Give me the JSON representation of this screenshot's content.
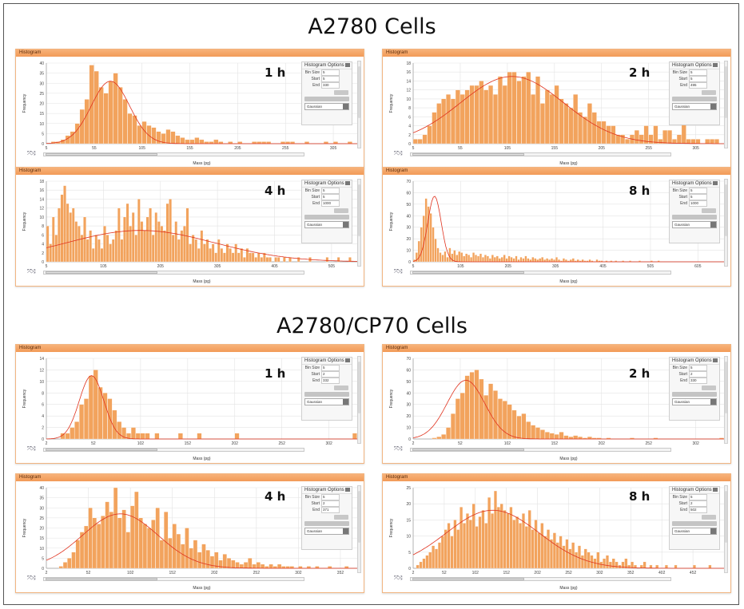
{
  "titles": {
    "top": "A2780  Cells",
    "bottom": "A2780/CP70  Cells"
  },
  "ui": {
    "header": "Histogram",
    "options_title": "Histogram Options",
    "bin_size_label": "Bin Size",
    "start_label": "Start",
    "end_label": "End",
    "fit_option": "Gaussian",
    "x_label": "Mass (pg)",
    "y_label": "Frequency"
  },
  "colors": {
    "bar": "#f2a35d",
    "bar_edge": "#ffffff",
    "fit": "#e0321e",
    "header": "#f4a56a"
  },
  "chart_data": [
    {
      "id": "a2780-1h",
      "type": "bar",
      "time": "1 h",
      "bin_size": "5",
      "start": "5",
      "end": "330",
      "ylim": [
        0,
        40
      ],
      "yticks": [
        0,
        5,
        10,
        15,
        20,
        25,
        30,
        35,
        40
      ],
      "xticks": [
        "5",
        "55",
        "105",
        "155",
        "205",
        "255",
        "305"
      ],
      "xlim": [
        5,
        330
      ],
      "values": [
        0,
        1,
        1,
        2,
        4,
        6,
        10,
        17,
        22,
        39,
        36,
        28,
        25,
        31,
        35,
        28,
        22,
        15,
        14,
        9,
        11,
        9,
        8,
        6,
        5,
        7,
        6,
        4,
        3,
        2,
        2,
        3,
        2,
        1,
        1,
        2,
        1,
        0,
        1,
        0,
        1,
        0,
        0,
        1,
        1,
        1,
        1,
        0,
        0,
        1,
        1,
        1,
        0,
        0,
        1,
        0,
        0,
        0,
        1,
        0,
        1,
        0,
        0,
        1,
        0,
        0
      ],
      "fit": {
        "mean": 72,
        "sd": 20,
        "peak": 31
      }
    },
    {
      "id": "a2780-2h",
      "type": "bar",
      "time": "2 h",
      "bin_size": "5",
      "start": "5",
      "end": "495",
      "ylim": [
        0,
        18
      ],
      "yticks": [
        0,
        2,
        4,
        6,
        8,
        10,
        12,
        14,
        16,
        18
      ],
      "xticks": [
        "5",
        "55",
        "105",
        "155",
        "205",
        "255",
        "305"
      ],
      "xlim": [
        5,
        335
      ],
      "values": [
        1,
        1,
        2,
        4,
        7,
        9,
        10,
        11,
        10,
        12,
        11,
        12,
        13,
        13,
        14,
        12,
        13,
        11,
        15,
        13,
        16,
        16,
        14,
        15,
        16,
        11,
        15,
        9,
        12,
        11,
        13,
        10,
        9,
        8,
        11,
        7,
        6,
        9,
        7,
        5,
        5,
        4,
        4,
        2,
        2,
        1,
        2,
        3,
        2,
        4,
        2,
        4,
        1,
        3,
        3,
        1,
        2,
        5,
        1,
        1,
        1,
        0,
        1,
        1,
        1,
        0,
        1
      ],
      "fit": {
        "mean": 110,
        "sd": 55,
        "peak": 15
      }
    },
    {
      "id": "a2780-4h",
      "type": "bar",
      "time": "4 h",
      "bin_size": "5",
      "start": "5",
      "end": "1000",
      "ylim": [
        0,
        18
      ],
      "yticks": [
        0,
        2,
        4,
        6,
        8,
        10,
        12,
        14,
        16,
        18
      ],
      "xticks": [
        "5",
        "105",
        "205",
        "305",
        "405",
        "505"
      ],
      "xlim": [
        5,
        550
      ],
      "values": [
        8,
        4,
        10,
        6,
        12,
        15,
        17,
        13,
        11,
        12,
        9,
        8,
        6,
        10,
        5,
        7,
        3,
        6,
        5,
        3,
        8,
        6,
        4,
        5,
        7,
        12,
        5,
        10,
        13,
        8,
        11,
        6,
        14,
        9,
        7,
        10,
        12,
        6,
        11,
        9,
        8,
        7,
        13,
        14,
        6,
        9,
        5,
        7,
        8,
        12,
        4,
        6,
        5,
        3,
        7,
        4,
        5,
        3,
        4,
        2,
        5,
        3,
        2,
        4,
        3,
        2,
        4,
        2,
        3,
        1,
        3,
        2,
        2,
        1,
        2,
        1,
        2,
        1,
        1,
        0,
        1,
        1,
        0,
        1,
        0,
        1,
        0,
        0,
        1,
        0,
        0,
        0,
        1,
        0,
        0,
        0,
        0,
        0,
        1,
        0,
        0,
        0,
        1,
        0,
        0,
        0,
        1,
        0,
        0,
        1
      ],
      "fit": {
        "mean": 170,
        "sd": 130,
        "peak": 7
      }
    },
    {
      "id": "a2780-8h",
      "type": "bar",
      "time": "8 h",
      "bin_size": "5",
      "start": "5",
      "end": "1000",
      "ylim": [
        0,
        70
      ],
      "yticks": [
        0,
        10,
        20,
        30,
        40,
        50,
        60,
        70
      ],
      "xticks": [
        "5",
        "105",
        "205",
        "305",
        "405",
        "505",
        "605"
      ],
      "xlim": [
        5,
        660
      ],
      "values": [
        2,
        8,
        18,
        30,
        40,
        55,
        48,
        42,
        30,
        20,
        12,
        8,
        6,
        9,
        4,
        12,
        7,
        10,
        6,
        9,
        8,
        5,
        7,
        6,
        4,
        8,
        6,
        5,
        7,
        4,
        6,
        5,
        3,
        6,
        4,
        5,
        3,
        4,
        6,
        3,
        5,
        4,
        3,
        5,
        2,
        4,
        3,
        5,
        3,
        2,
        4,
        3,
        2,
        3,
        4,
        2,
        3,
        2,
        3,
        2,
        4,
        2,
        1,
        3,
        2,
        1,
        2,
        3,
        1,
        2,
        1,
        2,
        1,
        1,
        2,
        1,
        0,
        2,
        1,
        1,
        0,
        1,
        0,
        1,
        0,
        1,
        0,
        0,
        1,
        0,
        0,
        1,
        0,
        0,
        0,
        1,
        0,
        0,
        0,
        0,
        1,
        0,
        0,
        1
      ],
      "fit": {
        "mean": 50,
        "sd": 14,
        "peak": 57
      }
    },
    {
      "id": "cp70-1h",
      "type": "bar",
      "time": "1 h",
      "bin_size": "5",
      "start": "2",
      "end": "332",
      "ylim": [
        0,
        14
      ],
      "yticks": [
        0,
        2,
        4,
        6,
        8,
        10,
        12,
        14
      ],
      "xticks": [
        "2",
        "52",
        "102",
        "152",
        "202",
        "252",
        "302"
      ],
      "xlim": [
        2,
        332
      ],
      "values": [
        0,
        0,
        0,
        1,
        1,
        2,
        3,
        6,
        7,
        11,
        12,
        9,
        8,
        7,
        5,
        3,
        2,
        1,
        2,
        1,
        1,
        1,
        0,
        1,
        0,
        0,
        0,
        0,
        1,
        0,
        0,
        0,
        1,
        0,
        0,
        0,
        0,
        0,
        0,
        0,
        1,
        0,
        0,
        0,
        0,
        0,
        0,
        0,
        0,
        0,
        0,
        0,
        0,
        0,
        0,
        0,
        0,
        0,
        0,
        0,
        0,
        0,
        0,
        0,
        0,
        1
      ],
      "fit": {
        "mean": 50,
        "sd": 13,
        "peak": 11
      }
    },
    {
      "id": "cp70-2h",
      "type": "bar",
      "time": "2 h",
      "bin_size": "5",
      "start": "2",
      "end": "330",
      "ylim": [
        0,
        70
      ],
      "yticks": [
        0,
        10,
        20,
        30,
        40,
        50,
        60,
        70
      ],
      "xticks": [
        "2",
        "52",
        "102",
        "152",
        "202",
        "252",
        "302"
      ],
      "xlim": [
        2,
        332
      ],
      "values": [
        0,
        0,
        0,
        0,
        1,
        2,
        4,
        10,
        22,
        35,
        40,
        55,
        58,
        60,
        52,
        38,
        48,
        42,
        35,
        33,
        30,
        25,
        20,
        22,
        15,
        12,
        10,
        8,
        6,
        5,
        4,
        6,
        3,
        2,
        3,
        2,
        1,
        2,
        1,
        1,
        0,
        1,
        0,
        0,
        0,
        0,
        1,
        0,
        0,
        0,
        0,
        1,
        0,
        0,
        0,
        0,
        0,
        0,
        0,
        0,
        0,
        0,
        0,
        0,
        0,
        1
      ],
      "fit": {
        "mean": 58,
        "sd": 20,
        "peak": 51
      }
    },
    {
      "id": "cp70-4h",
      "type": "bar",
      "time": "4 h",
      "bin_size": "5",
      "start": "2",
      "end": "371",
      "ylim": [
        0,
        40
      ],
      "yticks": [
        0,
        5,
        10,
        15,
        20,
        25,
        30,
        35,
        40
      ],
      "xticks": [
        "2",
        "52",
        "102",
        "152",
        "202",
        "252",
        "302",
        "352"
      ],
      "xlim": [
        2,
        372
      ],
      "values": [
        0,
        0,
        0,
        1,
        3,
        5,
        8,
        14,
        18,
        21,
        30,
        25,
        22,
        26,
        33,
        28,
        40,
        25,
        29,
        18,
        31,
        38,
        25,
        22,
        20,
        24,
        30,
        14,
        28,
        15,
        22,
        17,
        12,
        20,
        10,
        14,
        8,
        12,
        9,
        6,
        8,
        4,
        7,
        5,
        4,
        3,
        2,
        3,
        5,
        2,
        3,
        2,
        1,
        2,
        1,
        2,
        1,
        1,
        1,
        0,
        1,
        0,
        1,
        0,
        1,
        0,
        0,
        1,
        0,
        0,
        0,
        1,
        0,
        0
      ],
      "fit": {
        "mean": 90,
        "sd": 45,
        "peak": 27
      }
    },
    {
      "id": "cp70-8h",
      "type": "bar",
      "time": "8 h",
      "bin_size": "5",
      "start": "2",
      "end": "502",
      "ylim": [
        0,
        25
      ],
      "yticks": [
        0,
        5,
        10,
        15,
        20,
        25
      ],
      "xticks": [
        "2",
        "52",
        "102",
        "152",
        "202",
        "252",
        "302",
        "352",
        "402",
        "452"
      ],
      "xlim": [
        2,
        502
      ],
      "values": [
        0,
        1,
        2,
        3,
        4,
        5,
        7,
        6,
        8,
        10,
        12,
        14,
        10,
        15,
        12,
        19,
        14,
        17,
        15,
        20,
        13,
        16,
        18,
        14,
        22,
        17,
        24,
        19,
        20,
        18,
        17,
        19,
        15,
        16,
        14,
        17,
        13,
        18,
        12,
        15,
        11,
        14,
        10,
        12,
        9,
        11,
        8,
        10,
        7,
        9,
        6,
        8,
        5,
        7,
        4,
        6,
        5,
        4,
        3,
        5,
        2,
        3,
        4,
        2,
        3,
        2,
        1,
        2,
        3,
        1,
        2,
        1,
        0,
        1,
        2,
        0,
        1,
        0,
        1,
        0,
        0,
        1,
        0,
        0,
        1,
        0,
        0,
        0,
        0,
        0,
        1,
        0,
        0,
        0,
        0,
        1,
        0,
        0,
        0,
        0
      ],
      "fit": {
        "mean": 130,
        "sd": 75,
        "peak": 18
      }
    }
  ]
}
